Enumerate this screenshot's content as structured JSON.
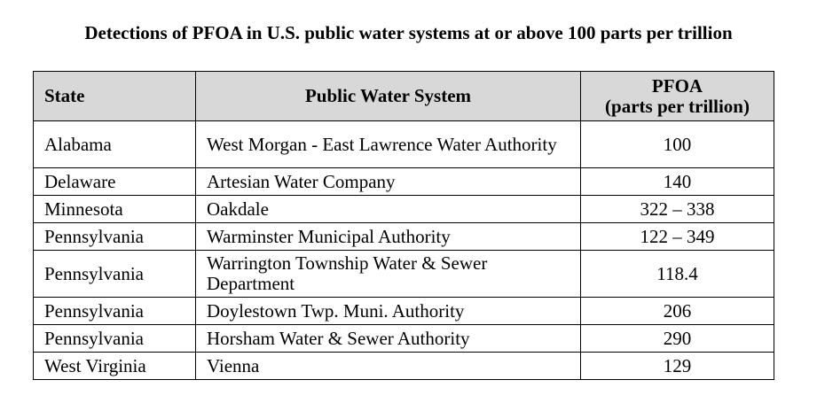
{
  "title": "Detections of PFOA in U.S. public water systems at or above 100 parts per trillion",
  "columns": {
    "state": "State",
    "system": "Public Water System",
    "pfoa_main": "PFOA",
    "pfoa_sub": "(parts per trillion)"
  },
  "rows": [
    {
      "state": "Alabama",
      "system": "West Morgan - East Lawrence Water Authority",
      "pfoa": "100"
    },
    {
      "state": "Delaware",
      "system": "Artesian Water Company",
      "pfoa": "140"
    },
    {
      "state": "Minnesota",
      "system": "Oakdale",
      "pfoa": "322 – 338"
    },
    {
      "state": "Pennsylvania",
      "system": "Warminster Municipal Authority",
      "pfoa": "122 – 349"
    },
    {
      "state": "Pennsylvania",
      "system": "Warrington Township Water & Sewer Department",
      "pfoa": "118.4"
    },
    {
      "state": "Pennsylvania",
      "system": "Doylestown Twp. Muni. Authority",
      "pfoa": "206"
    },
    {
      "state": "Pennsylvania",
      "system": "Horsham Water & Sewer Authority",
      "pfoa": "290"
    },
    {
      "state": "West Virginia",
      "system": "Vienna",
      "pfoa": "129"
    }
  ]
}
